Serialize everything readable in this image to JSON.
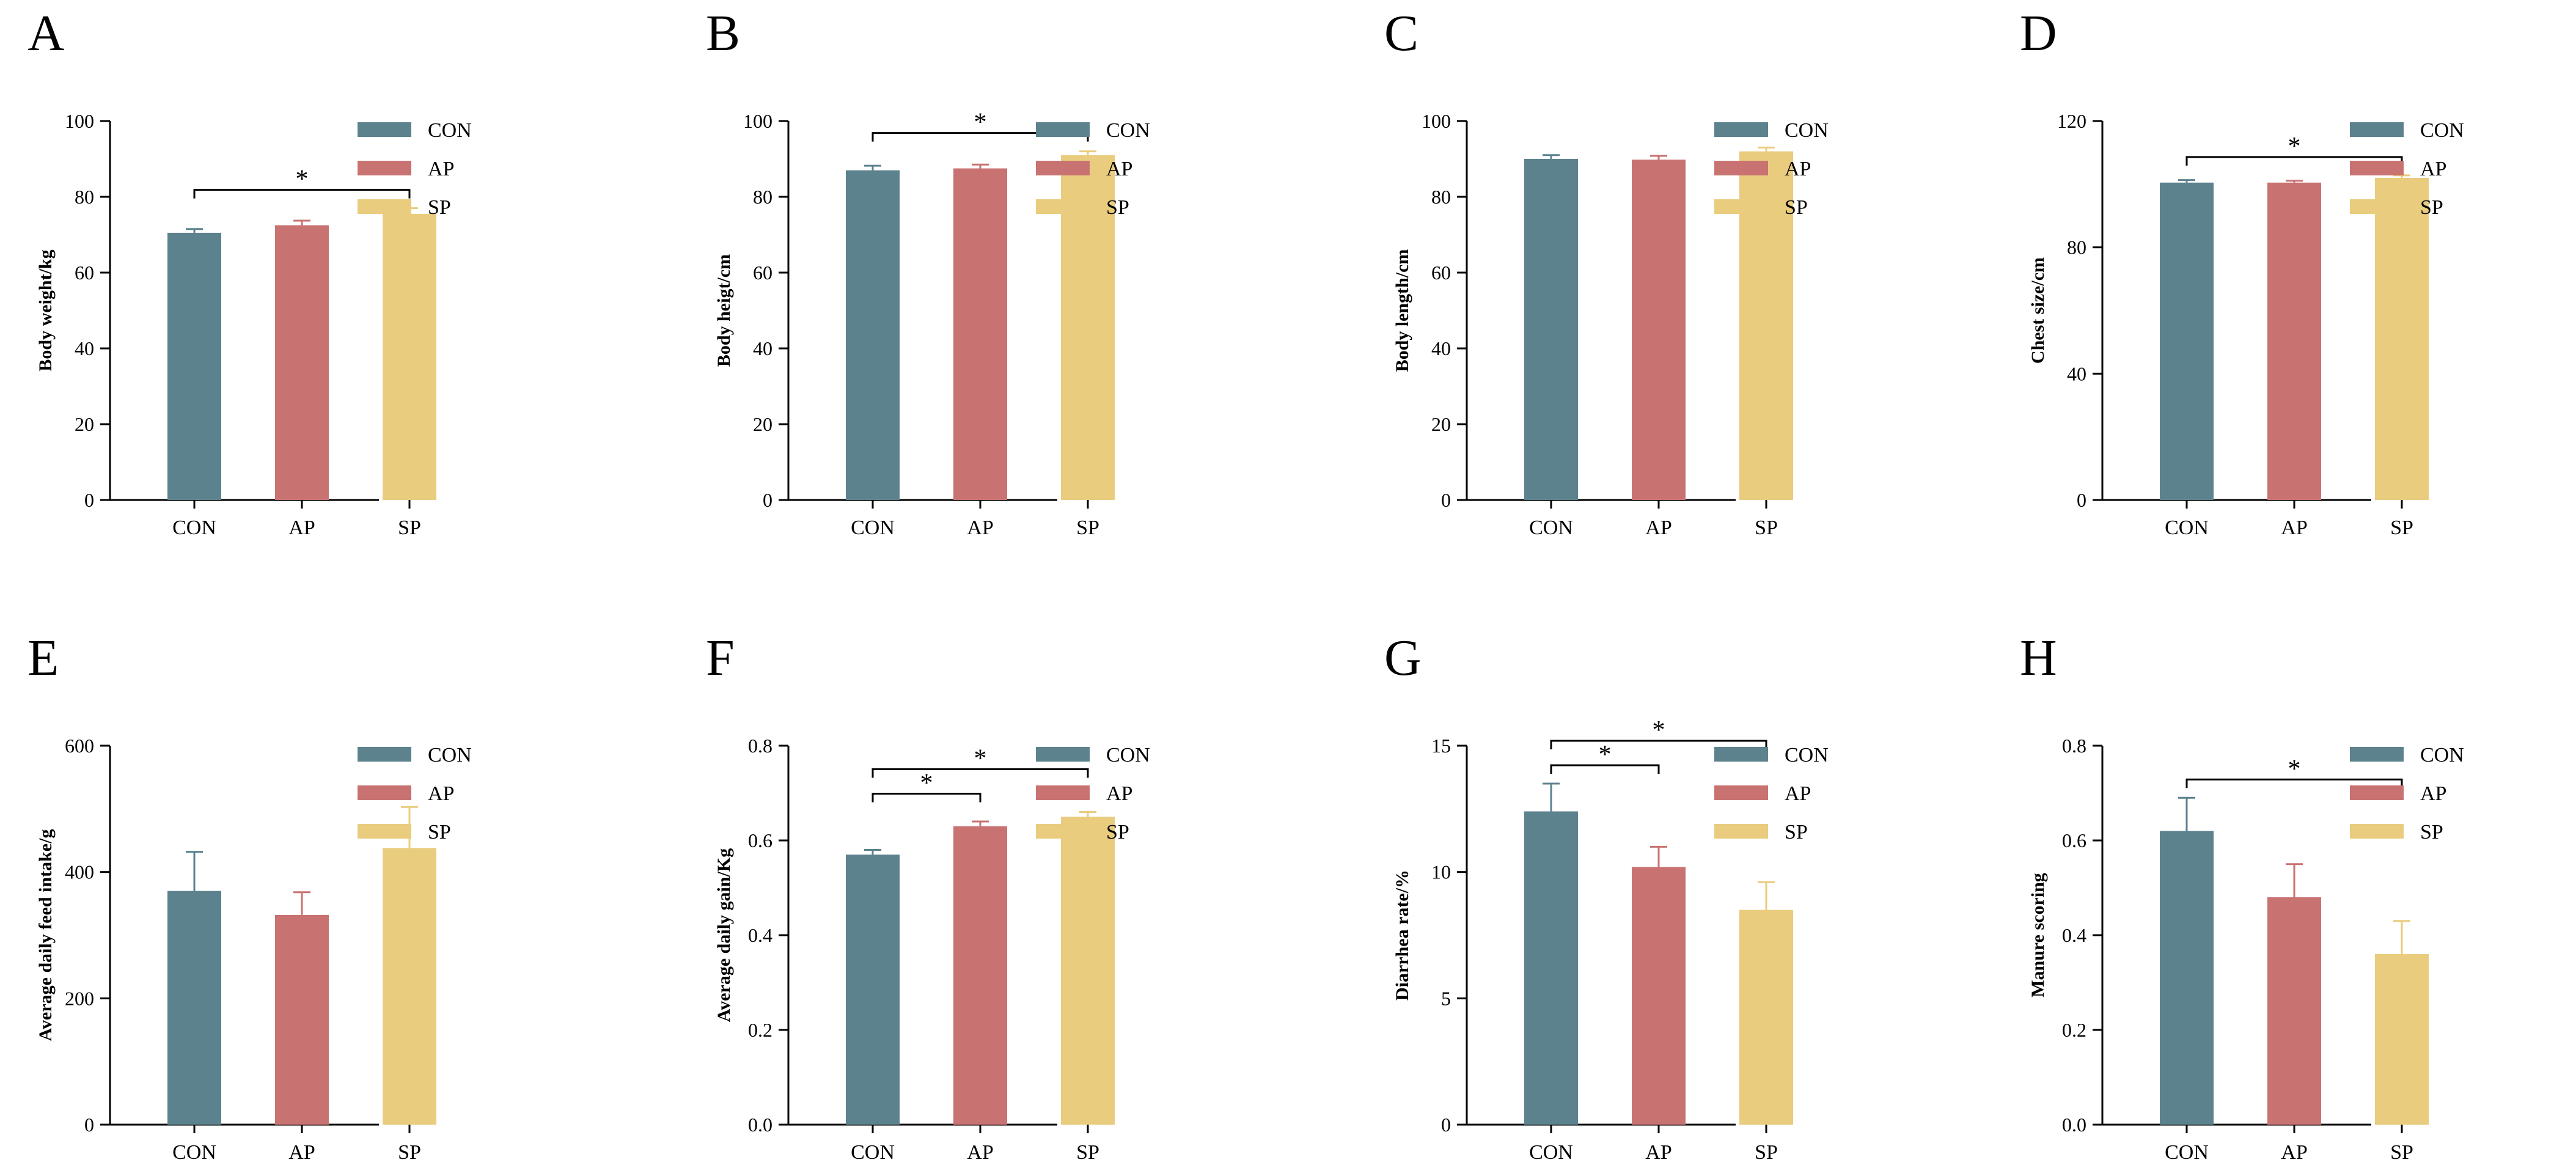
{
  "colors": {
    "CON": "#5c828e",
    "AP": "#c97272",
    "SP": "#e9cc7e"
  },
  "chart_data": [
    {
      "panel": "A",
      "type": "bar",
      "categories": [
        "CON",
        "AP",
        "SP"
      ],
      "values": [
        70.5,
        72.5,
        75.5
      ],
      "errors": [
        1.0,
        1.2,
        1.5
      ],
      "ylabel": "Body weight/kg",
      "ylim": [
        0,
        100
      ],
      "yticks": [
        "0",
        "20",
        "40",
        "60",
        "80",
        "100"
      ],
      "legend": [
        "CON",
        "AP",
        "SP"
      ],
      "significance": [
        {
          "from": 0,
          "to": 2,
          "label": "*"
        }
      ]
    },
    {
      "panel": "B",
      "type": "bar",
      "categories": [
        "CON",
        "AP",
        "SP"
      ],
      "values": [
        87,
        87.5,
        91
      ],
      "errors": [
        1.2,
        1.0,
        1.0
      ],
      "ylabel": "Body heigt/cm",
      "ylim": [
        0,
        100
      ],
      "yticks": [
        "0",
        "20",
        "40",
        "60",
        "80",
        "100"
      ],
      "legend": [
        "CON",
        "AP",
        "SP"
      ],
      "significance": [
        {
          "from": 0,
          "to": 2,
          "label": "*"
        }
      ]
    },
    {
      "panel": "C",
      "type": "bar",
      "categories": [
        "CON",
        "AP",
        "SP"
      ],
      "values": [
        90,
        89.8,
        92
      ],
      "errors": [
        1.0,
        1.0,
        1.0
      ],
      "ylabel": "Body length/cm",
      "ylim": [
        0,
        100
      ],
      "yticks": [
        "0",
        "20",
        "40",
        "60",
        "80",
        "100"
      ],
      "legend": [
        "CON",
        "AP",
        "SP"
      ],
      "significance": []
    },
    {
      "panel": "D",
      "type": "bar",
      "categories": [
        "CON",
        "AP",
        "SP"
      ],
      "values": [
        100.5,
        100.5,
        102
      ],
      "errors": [
        0.8,
        0.6,
        0.8
      ],
      "ylabel": "Chest size/cm",
      "ylim": [
        0,
        120
      ],
      "yticks": [
        "0",
        "40",
        "80",
        "120"
      ],
      "legend": [
        "CON",
        "AP",
        "SP"
      ],
      "significance": [
        {
          "from": 0,
          "to": 2,
          "label": "*"
        }
      ]
    },
    {
      "panel": "E",
      "type": "bar",
      "categories": [
        "CON",
        "AP",
        "SP"
      ],
      "values": [
        370,
        332,
        438
      ],
      "errors": [
        62,
        36,
        65
      ],
      "ylabel": "Average daily feed intake/g",
      "ylim": [
        0,
        600
      ],
      "yticks": [
        "0",
        "200",
        "400",
        "600"
      ],
      "legend": [
        "CON",
        "AP",
        "SP"
      ],
      "significance": []
    },
    {
      "panel": "F",
      "type": "bar",
      "categories": [
        "CON",
        "AP",
        "SP"
      ],
      "values": [
        0.57,
        0.63,
        0.65
      ],
      "errors": [
        0.01,
        0.01,
        0.01
      ],
      "ylabel": "Average daily gain/Kg",
      "ylim": [
        0,
        0.8
      ],
      "yticks": [
        "0.0",
        "0.2",
        "0.4",
        "0.6",
        "0.8"
      ],
      "legend": [
        "CON",
        "AP",
        "SP"
      ],
      "significance": [
        {
          "from": 0,
          "to": 1,
          "label": "*"
        },
        {
          "from": 0,
          "to": 2,
          "label": "*"
        }
      ]
    },
    {
      "panel": "G",
      "type": "bar",
      "categories": [
        "CON",
        "AP",
        "SP"
      ],
      "values": [
        12.4,
        10.2,
        8.5
      ],
      "errors": [
        1.1,
        0.8,
        1.1
      ],
      "ylabel": "Diarrhea rate/%",
      "ylim": [
        0,
        15
      ],
      "yticks": [
        "0",
        "5",
        "10",
        "15"
      ],
      "legend": [
        "CON",
        "AP",
        "SP"
      ],
      "significance": [
        {
          "from": 0,
          "to": 1,
          "label": "*"
        },
        {
          "from": 0,
          "to": 2,
          "label": "*"
        }
      ]
    },
    {
      "panel": "H",
      "type": "bar",
      "categories": [
        "CON",
        "AP",
        "SP"
      ],
      "values": [
        0.62,
        0.48,
        0.36
      ],
      "errors": [
        0.07,
        0.07,
        0.07
      ],
      "ylabel": "Manure scoring",
      "ylim": [
        0,
        0.8
      ],
      "yticks": [
        "0.0",
        "0.2",
        "0.4",
        "0.6",
        "0.8"
      ],
      "legend": [
        "CON",
        "AP",
        "SP"
      ],
      "significance": [
        {
          "from": 0,
          "to": 2,
          "label": "*"
        }
      ]
    }
  ]
}
